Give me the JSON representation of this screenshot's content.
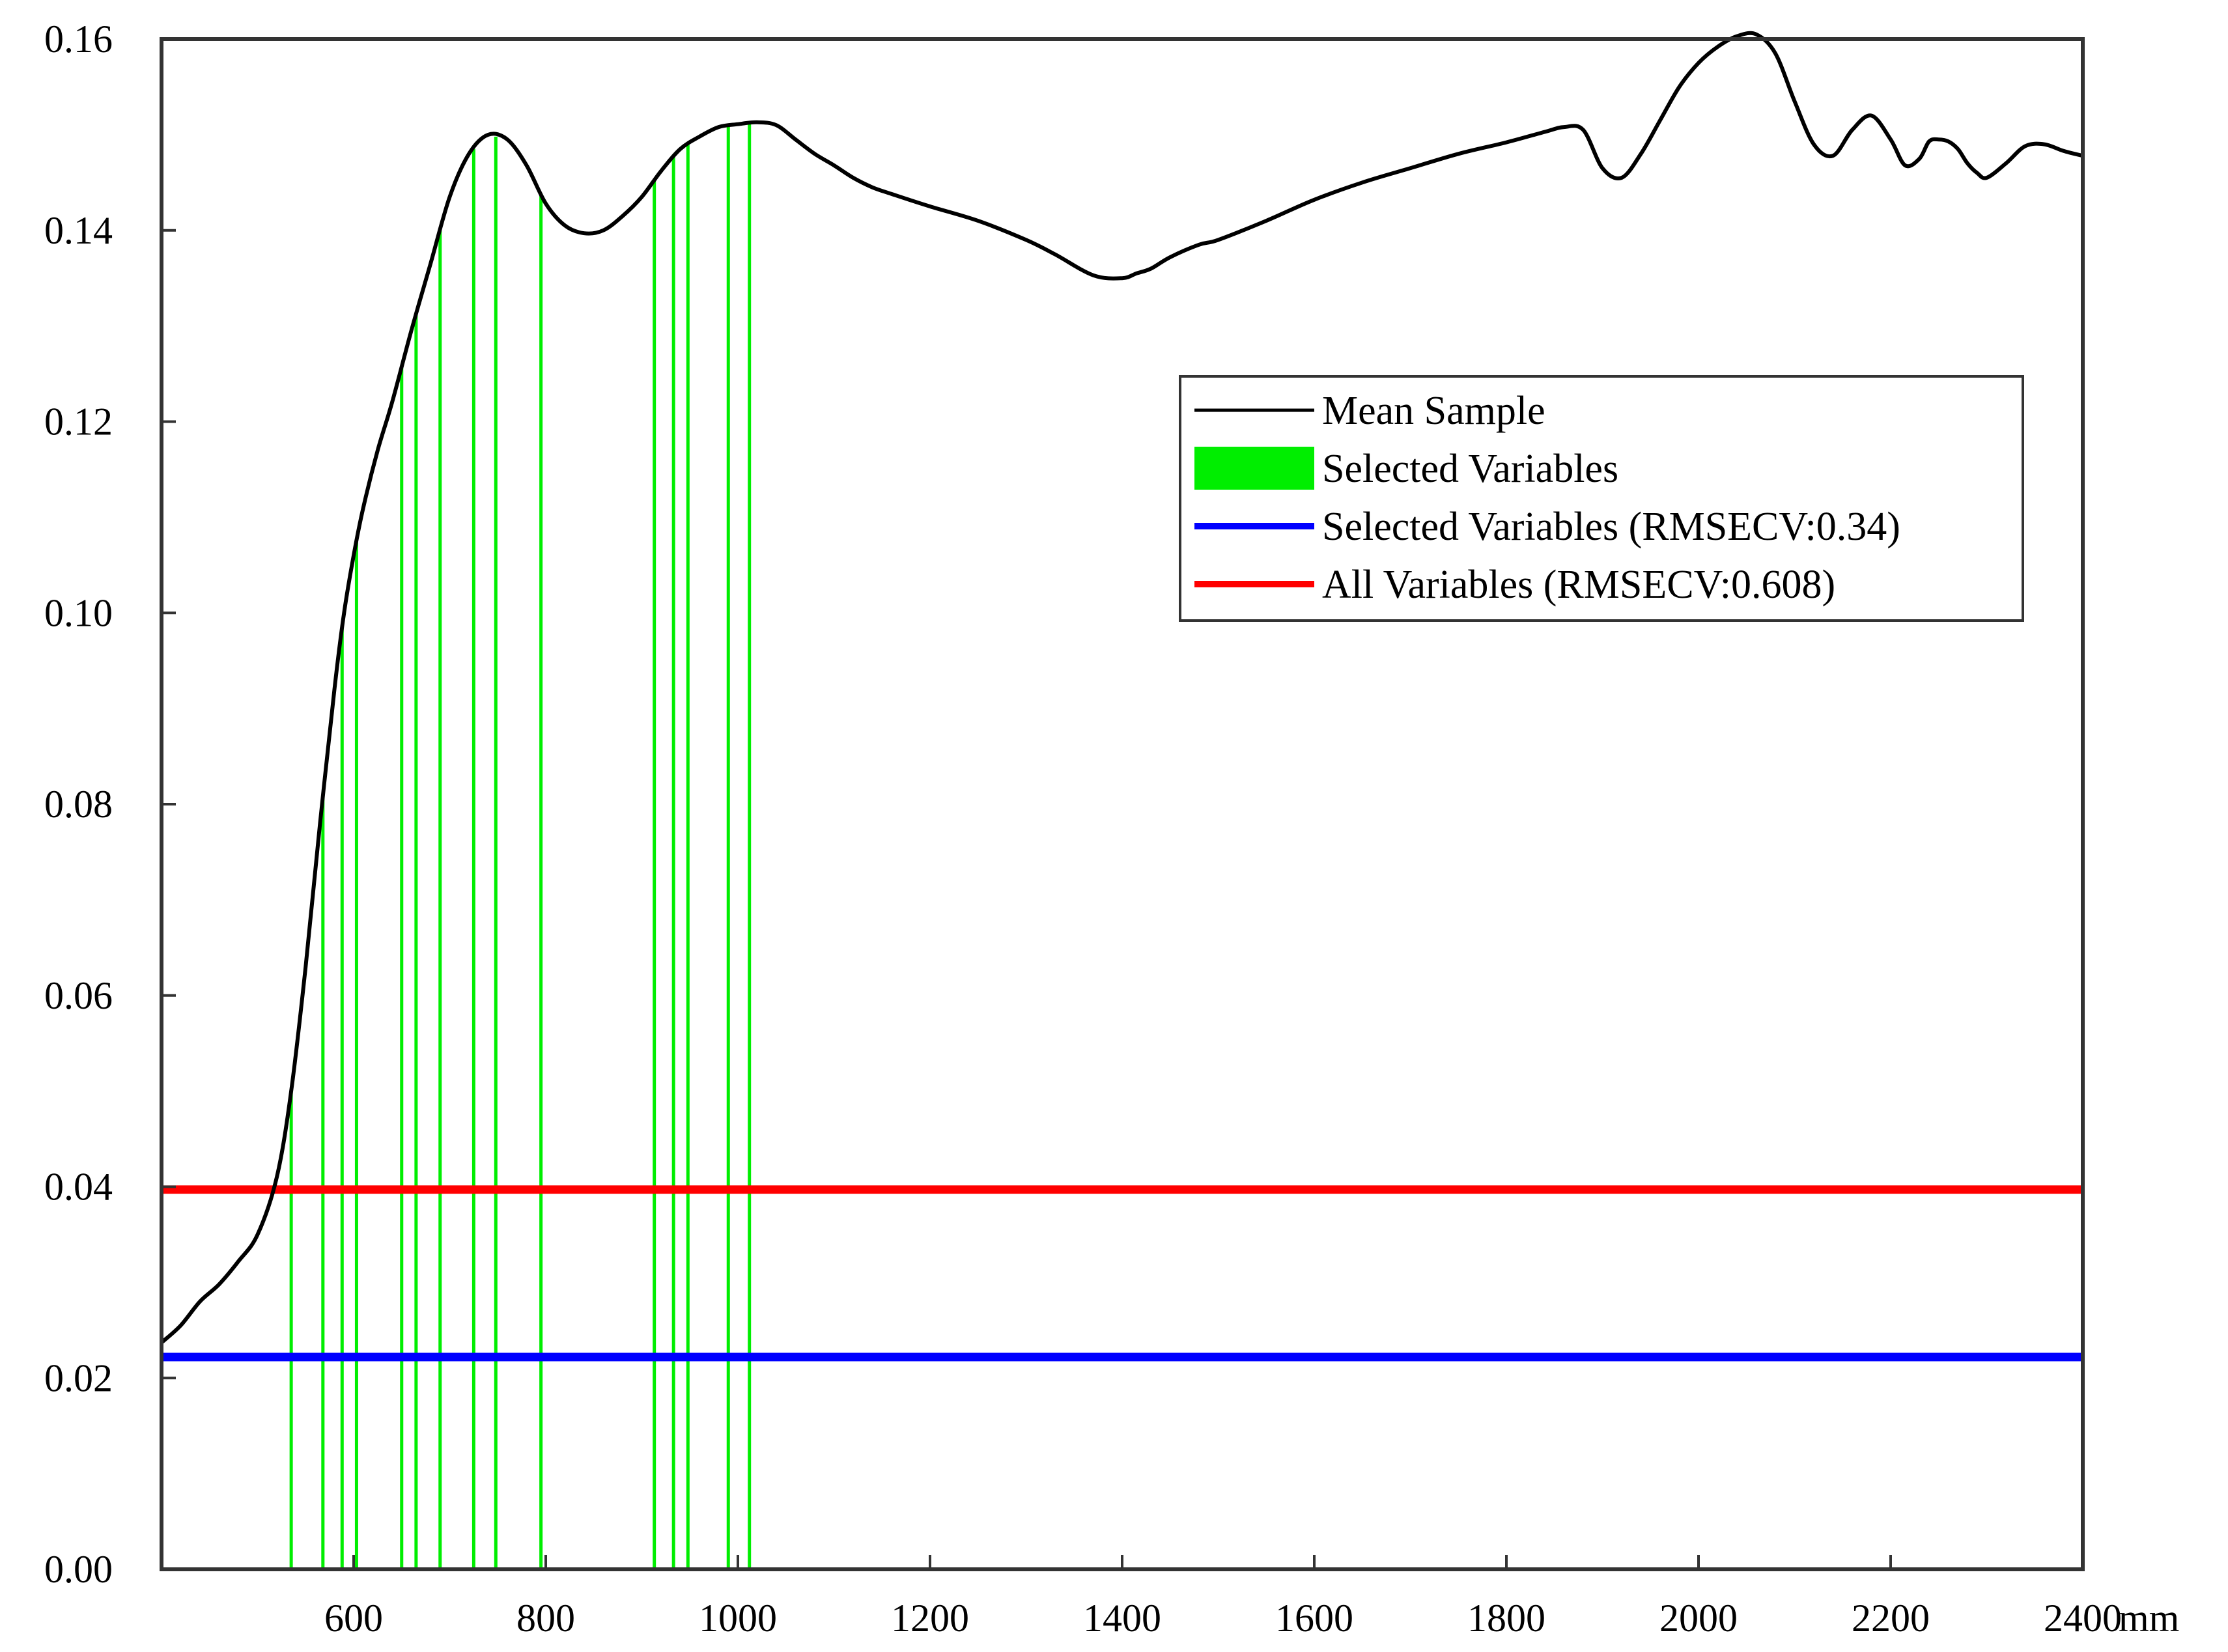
{
  "chart_data": {
    "type": "line",
    "title": "",
    "xlabel": "",
    "ylabel": "",
    "x_unit": "mm",
    "xlim": [
      400,
      2400
    ],
    "ylim": [
      0,
      0.16
    ],
    "xticks": [
      600,
      800,
      1000,
      1200,
      1400,
      1600,
      1800,
      2000,
      2200,
      2400
    ],
    "xtick_labels": [
      "600",
      "800",
      "1000",
      "1200",
      "1400",
      "1600",
      "1800",
      "2000",
      "2200",
      "2400"
    ],
    "yticks": [
      0,
      0.02,
      0.04,
      0.06,
      0.08,
      0.1,
      0.12,
      0.14,
      0.16
    ],
    "ytick_labels": [
      "0.00",
      "0.02",
      "0.04",
      "0.06",
      "0.08",
      "0.10",
      "0.12",
      "0.14",
      "0.16"
    ],
    "grid": false,
    "legend_position": "upper-right",
    "legend": [
      {
        "label": "Mean Sample",
        "kind": "line",
        "color": "#000000"
      },
      {
        "label": "Selected Variables",
        "kind": "patch",
        "color": "#00ee00"
      },
      {
        "label": "Selected Variables (RMSECV:0.34)",
        "kind": "line",
        "color": "#0000ff"
      },
      {
        "label": "All Variables (RMSECV:0.608)",
        "kind": "line",
        "color": "#ff0000"
      }
    ],
    "series": [
      {
        "name": "Mean Sample",
        "color": "#000000",
        "x": [
          400,
          420,
          440,
          460,
          480,
          500,
          520,
          535,
          550,
          565,
          580,
          590,
          600,
          610,
          625,
          640,
          660,
          680,
          700,
          720,
          740,
          760,
          780,
          800,
          820,
          840,
          860,
          880,
          900,
          920,
          940,
          960,
          980,
          1000,
          1020,
          1040,
          1060,
          1080,
          1100,
          1120,
          1140,
          1160,
          1200,
          1250,
          1300,
          1330,
          1370,
          1400,
          1415,
          1430,
          1450,
          1480,
          1500,
          1550,
          1600,
          1650,
          1700,
          1750,
          1800,
          1840,
          1860,
          1880,
          1900,
          1920,
          1940,
          1960,
          1980,
          2000,
          2020,
          2040,
          2060,
          2080,
          2100,
          2120,
          2140,
          2160,
          2180,
          2200,
          2215,
          2230,
          2240,
          2250,
          2260,
          2270,
          2280,
          2290,
          2300,
          2320,
          2340,
          2360,
          2380,
          2400
        ],
        "y": [
          0.0237,
          0.0255,
          0.028,
          0.0298,
          0.0322,
          0.035,
          0.041,
          0.05,
          0.063,
          0.078,
          0.092,
          0.1,
          0.106,
          0.111,
          0.117,
          0.122,
          0.1295,
          0.1365,
          0.1435,
          0.148,
          0.15,
          0.1495,
          0.1468,
          0.1428,
          0.1405,
          0.1397,
          0.14,
          0.1415,
          0.1435,
          0.1462,
          0.1485,
          0.1498,
          0.1508,
          0.1511,
          0.1513,
          0.151,
          0.1495,
          0.148,
          0.1468,
          0.1455,
          0.1445,
          0.1438,
          0.1425,
          0.141,
          0.139,
          0.1375,
          0.1353,
          0.135,
          0.1355,
          0.136,
          0.1372,
          0.1385,
          0.139,
          0.141,
          0.1432,
          0.145,
          0.1465,
          0.148,
          0.1492,
          0.1503,
          0.1508,
          0.1505,
          0.1465,
          0.1455,
          0.148,
          0.1515,
          0.155,
          0.1575,
          0.1592,
          0.1603,
          0.1605,
          0.1585,
          0.1535,
          0.149,
          0.1478,
          0.1505,
          0.152,
          0.1495,
          0.1468,
          0.1475,
          0.1493,
          0.1495,
          0.1493,
          0.1485,
          0.147,
          0.146,
          0.1455,
          0.147,
          0.1488,
          0.149,
          0.1483,
          0.1478
        ]
      },
      {
        "name": "Selected Variables (RMSECV:0.34)",
        "color": "#0000ff",
        "type": "hline",
        "y": 0.0222
      },
      {
        "name": "All Variables (RMSECV:0.608)",
        "color": "#ff0000",
        "type": "hline",
        "y": 0.0397
      }
    ],
    "selected_variables": {
      "name": "Selected Variables",
      "color": "#00ee00",
      "x": [
        535,
        568,
        588,
        603,
        650,
        665,
        690,
        725,
        748,
        795,
        913,
        933,
        948,
        990,
        1012
      ]
    }
  }
}
